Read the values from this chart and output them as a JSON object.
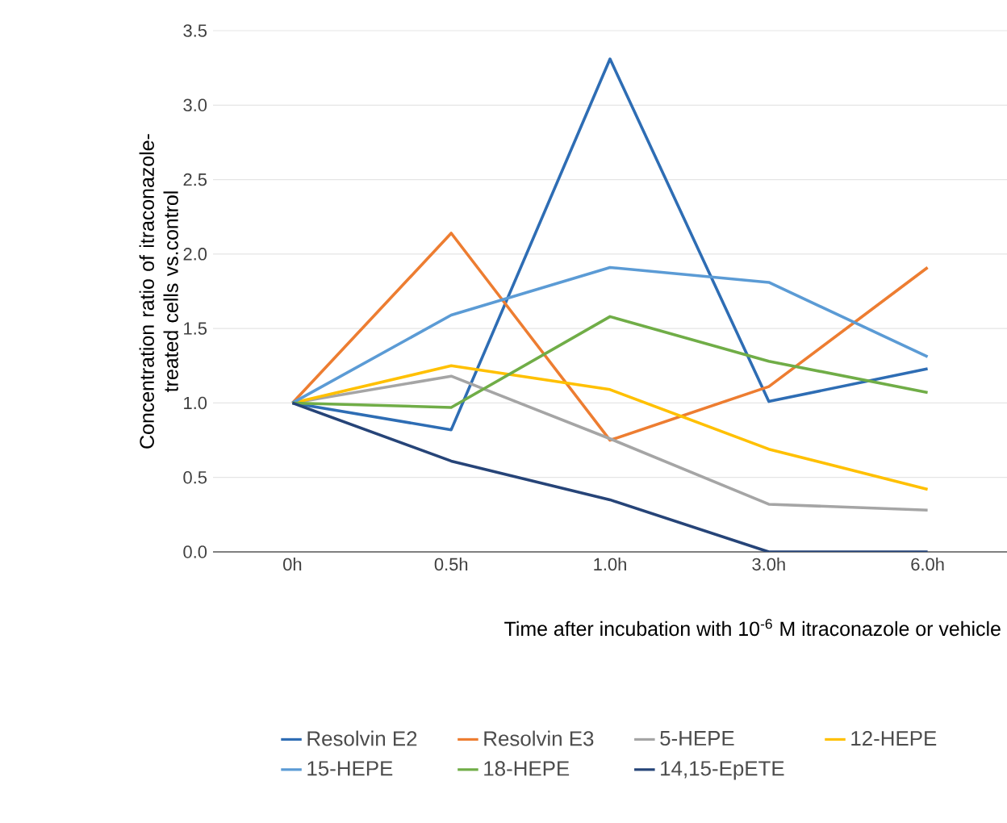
{
  "chart_data": {
    "type": "line",
    "xlabel": "Time after incubation with 10$^{-6}$ M itraconazole or vehicle",
    "ylabel": "Concentration ratio of itraconazole-treated cells vs.control",
    "categories": [
      "0h",
      "0.5h",
      "1.0h",
      "3.0h",
      "6.0h"
    ],
    "ylim": [
      0,
      3.5
    ],
    "yticks": [
      {
        "value": 0,
        "label": "0.0"
      },
      {
        "value": 0.5,
        "label": "0.5"
      },
      {
        "value": 1,
        "label": "1.0"
      },
      {
        "value": 1.5,
        "label": "1.5"
      },
      {
        "value": 2,
        "label": "2.0"
      },
      {
        "value": 2.5,
        "label": "2.5"
      },
      {
        "value": 3,
        "label": "3.0"
      },
      {
        "value": 3.5,
        "label": "3.5"
      }
    ],
    "grid": "y",
    "legend": "bottom",
    "marker": "none",
    "line_style": "solid",
    "series": [
      {
        "name": "Resolvin E2",
        "color": "#2e6db4",
        "values": [
          1.0,
          0.82,
          3.31,
          1.01,
          1.23
        ]
      },
      {
        "name": "Resolvin E3",
        "color": "#ed7d31",
        "values": [
          1.0,
          2.14,
          0.75,
          1.11,
          1.91
        ]
      },
      {
        "name": "5-HEPE",
        "color": "#a5a5a5",
        "values": [
          1.0,
          1.18,
          0.76,
          0.32,
          0.28
        ]
      },
      {
        "name": "12-HEPE",
        "color": "#ffc000",
        "values": [
          1.0,
          1.25,
          1.09,
          0.69,
          0.42
        ]
      },
      {
        "name": "15-HEPE",
        "color": "#5b9bd5",
        "values": [
          1.0,
          1.59,
          1.91,
          1.81,
          1.31
        ]
      },
      {
        "name": "18-HEPE",
        "color": "#70ad47",
        "values": [
          1.0,
          0.97,
          1.58,
          1.28,
          1.07
        ]
      },
      {
        "name": "14,15-EpETE",
        "color": "#264478",
        "values": [
          1.0,
          0.61,
          0.35,
          0.0,
          0.0
        ]
      }
    ]
  }
}
